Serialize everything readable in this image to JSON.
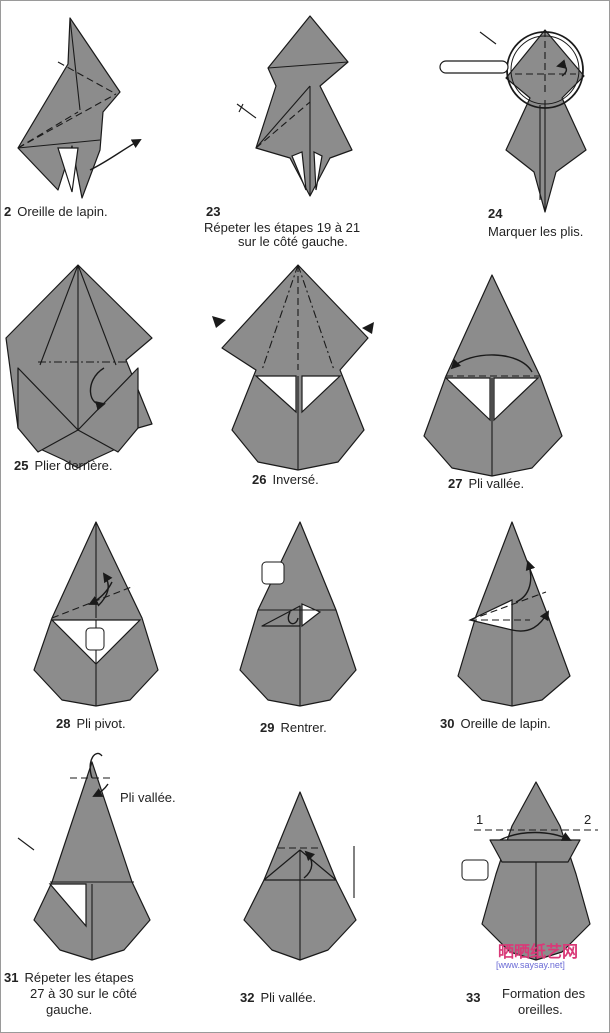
{
  "steps": [
    {
      "number": "2",
      "text": "Oreille de lapin."
    },
    {
      "number": "23",
      "text": "Répeter les étapes 19 à 21",
      "text2": "sur le côté gauche."
    },
    {
      "number": "24",
      "text": "Marquer les plis."
    },
    {
      "number": "25",
      "text": "Plier derrière."
    },
    {
      "number": "26",
      "text": "Inversé."
    },
    {
      "number": "27",
      "text": "Pli vallée."
    },
    {
      "number": "28",
      "text": "Pli pivot."
    },
    {
      "number": "29",
      "text": "Rentrer."
    },
    {
      "number": "30",
      "text": "Oreille de lapin."
    },
    {
      "number": "31",
      "text": "Répeter les étapes",
      "text2": "27 à 30 sur le côté",
      "text3": "gauche."
    },
    {
      "number": "32",
      "text": "Pli vallée."
    },
    {
      "number": "33",
      "text": "Formation des",
      "text2": "oreilles."
    }
  ],
  "annotations": {
    "pli_vallee_31": "Pli vallée.",
    "mark_1": "1",
    "mark_2": "2"
  },
  "watermark": {
    "text": "晒晒纸艺网",
    "url": "[www.saysay.net]"
  },
  "colors": {
    "paper_gray": "#8c8c8c",
    "line": "#1a1a1a",
    "white": "#ffffff"
  }
}
